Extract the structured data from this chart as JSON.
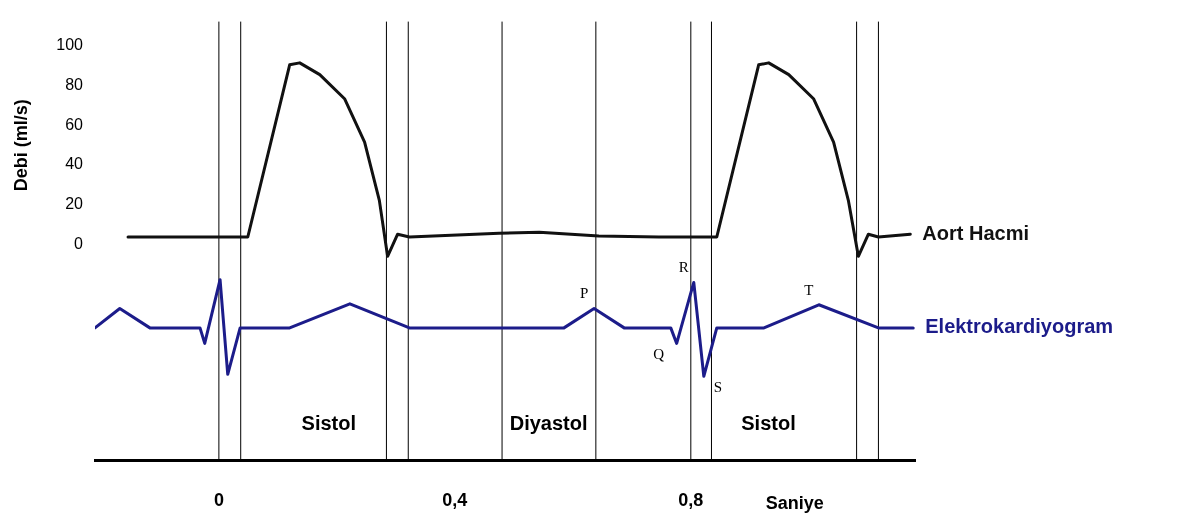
{
  "chart_data": {
    "type": "line",
    "ylabel": "Debi (ml/s)",
    "xlabel": "Saniye",
    "xlim": [
      -0.21,
      1.18
    ],
    "xticks": [
      0,
      {
        "value": 0.4,
        "label": "0,4"
      },
      {
        "value": 0.8,
        "label": "0,8"
      }
    ],
    "ylim": [
      -108,
      112
    ],
    "yticks": [
      0,
      20,
      40,
      60,
      80,
      100
    ],
    "grid": false,
    "marker": "none",
    "line_style": "solid",
    "series": [
      {
        "name": "Aort Hacmi",
        "color": "#111111",
        "x": [
          -0.154,
          0.049,
          0.12,
          0.137,
          0.171,
          0.213,
          0.247,
          0.272,
          0.286,
          0.303,
          0.323,
          0.475,
          0.543,
          0.644,
          0.746,
          0.844,
          0.915,
          0.932,
          0.966,
          1.008,
          1.042,
          1.067,
          1.084,
          1.101,
          1.118,
          1.172
        ],
        "values": [
          3.9,
          3.9,
          90.3,
          91.3,
          85.4,
          73.3,
          51.5,
          22.3,
          -5.8,
          5.3,
          3.9,
          5.8,
          6.3,
          4.4,
          3.9,
          3.9,
          90.3,
          91.3,
          85.4,
          73.3,
          51.5,
          22.3,
          -5.8,
          5.3,
          3.9,
          5.3
        ]
      },
      {
        "name": "Elektrokardiyogram",
        "color": "#1c1c8a",
        "x": [
          -0.21,
          -0.168,
          -0.117,
          -0.032,
          -0.024,
          0.002,
          0.015,
          0.036,
          0.12,
          0.222,
          0.323,
          0.585,
          0.636,
          0.687,
          0.766,
          0.776,
          0.805,
          0.822,
          0.844,
          0.924,
          1.017,
          1.118,
          1.177
        ],
        "values": [
          -41.7,
          -32,
          -41.7,
          -41.7,
          -49.5,
          -17.5,
          -65,
          -41.7,
          -41.7,
          -29.6,
          -41.7,
          -41.7,
          -32,
          -41.7,
          -41.7,
          -49.5,
          -18.9,
          -66,
          -41.7,
          -41.7,
          -30.1,
          -41.7,
          -41.7
        ]
      }
    ],
    "ref_lines": [
      {
        "axis": "x",
        "value": 0,
        "color": "#000000"
      },
      {
        "axis": "x",
        "value": 0.037,
        "color": "#000000"
      },
      {
        "axis": "x",
        "value": 0.284,
        "color": "#000000"
      },
      {
        "axis": "x",
        "value": 0.321,
        "color": "#000000"
      },
      {
        "axis": "x",
        "value": 0.48,
        "color": "#000000"
      },
      {
        "axis": "x",
        "value": 0.639,
        "color": "#000000"
      },
      {
        "axis": "x",
        "value": 0.8,
        "color": "#000000"
      },
      {
        "axis": "x",
        "value": 0.835,
        "color": "#000000"
      },
      {
        "axis": "x",
        "value": 1.081,
        "color": "#000000"
      },
      {
        "axis": "x",
        "value": 1.118,
        "color": "#000000"
      }
    ],
    "annotations": [
      "Sistol",
      "Diyastol",
      "Sistol",
      {
        "text": "P",
        "x": 0.636,
        "y": -32
      },
      {
        "text": "R",
        "x": 0.805,
        "y": -18.9
      },
      {
        "text": "Q",
        "x": 0.776,
        "y": -49.5
      },
      {
        "text": "S",
        "x": 0.822,
        "y": -66
      },
      {
        "text": "T",
        "x": 1.017,
        "y": -30.1
      }
    ]
  }
}
